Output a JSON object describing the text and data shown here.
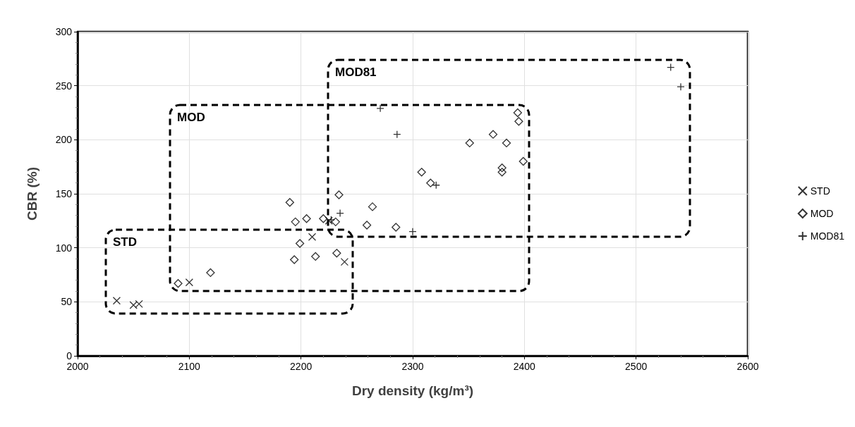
{
  "chart_data": {
    "type": "scatter",
    "xlabel": "Dry density (kg/m³)",
    "ylabel": "CBR (%)",
    "xlim": [
      2000,
      2600
    ],
    "xticks": [
      2000,
      2100,
      2200,
      2300,
      2400,
      2500,
      2600
    ],
    "ylim": [
      0,
      300
    ],
    "yticks": [
      0,
      50,
      100,
      150,
      200,
      250,
      300
    ],
    "grid": true,
    "legend": "right",
    "series": [
      {
        "name": "STD",
        "marker": "x",
        "color": "#000000",
        "x": [
          2035,
          2050,
          2055,
          2100,
          2210,
          2225,
          2239
        ],
        "values": [
          51,
          47,
          48,
          68,
          110,
          125,
          87
        ]
      },
      {
        "name": "MOD",
        "marker": "diamond",
        "color": "#000000",
        "x": [
          2090,
          2119,
          2190,
          2195,
          2199,
          2194,
          2205,
          2213,
          2220,
          2231,
          2232,
          2234,
          2259,
          2264,
          2285,
          2308,
          2316,
          2351,
          2372,
          2380,
          2380,
          2384,
          2394,
          2395,
          2399
        ],
        "values": [
          67,
          77,
          142,
          124,
          104,
          89,
          127,
          92,
          127,
          124,
          95,
          149,
          121,
          138,
          119,
          170,
          160,
          197,
          205,
          174,
          170,
          197,
          225,
          217,
          180
        ]
      },
      {
        "name": "MOD81",
        "marker": "cross",
        "color": "#000000",
        "x": [
          2227,
          2235,
          2271,
          2286,
          2300,
          2321,
          2531,
          2540
        ],
        "values": [
          126,
          132,
          229,
          205,
          115,
          158,
          267,
          249
        ]
      }
    ],
    "annotations": [
      "STD",
      "MOD",
      "MOD81"
    ]
  }
}
